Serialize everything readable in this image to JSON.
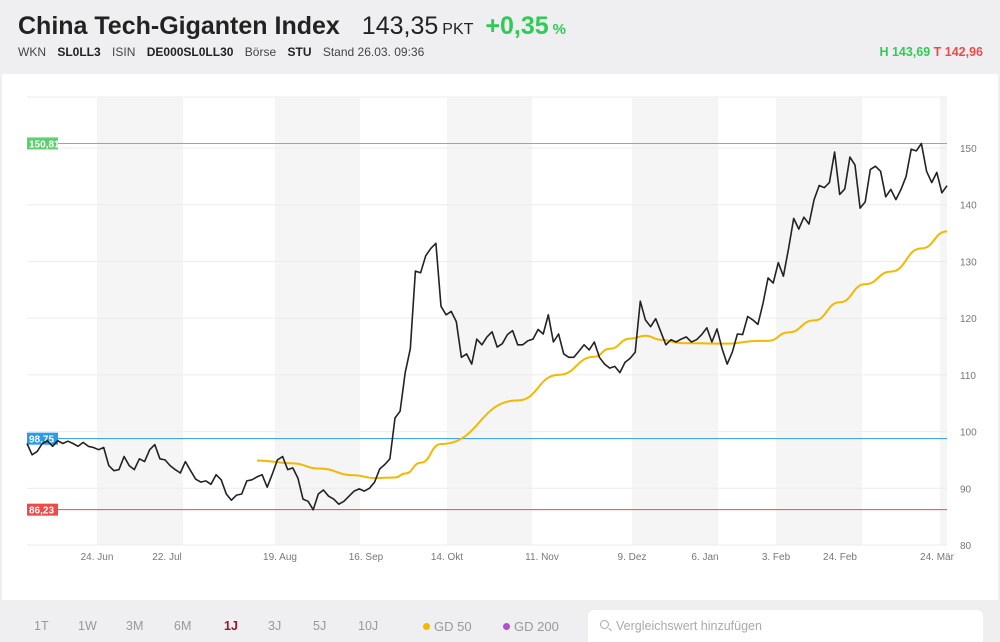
{
  "header": {
    "title": "China Tech-Giganten Index",
    "price": "143,35",
    "unit": "PKT",
    "change": "+0,35",
    "change_unit": "%",
    "wkn_label": "WKN",
    "wkn": "SL0LL3",
    "isin_label": "ISIN",
    "isin": "DE000SL0LL30",
    "exchange_label": "Börse",
    "exchange": "STU",
    "stand": "Stand 26.03. 09:36",
    "high": "H 143,69",
    "low": "T 142,96"
  },
  "colors": {
    "up": "#2ecc55",
    "down": "#ef4a4a",
    "price_line": "#222222",
    "gd50": "#f5b800",
    "gd200": "#b24fd1",
    "high_line": "#5ccf6e",
    "mid_line": "#2a9be8",
    "low_line": "#ef4a4a",
    "active_range": "#a0132c"
  },
  "bottom": {
    "ranges": [
      "1T",
      "1W",
      "3M",
      "6M",
      "1J",
      "3J",
      "5J",
      "10J"
    ],
    "active_range": "1J",
    "gd50": "GD 50",
    "gd200": "GD 200",
    "search_placeholder": "Vergleichswert hinzufügen"
  },
  "chart_data": {
    "type": "line",
    "y_ticks": [
      80,
      90,
      100,
      110,
      120,
      130,
      140,
      150
    ],
    "ylim": [
      80,
      159
    ],
    "x_ticks": [
      "24. Jun",
      "22. Jul",
      "19. Aug",
      "16. Sep",
      "14. Okt",
      "11. Nov",
      "9. Dez",
      "6. Jan",
      "3. Feb",
      "24. Feb",
      "24. Mär"
    ],
    "grid": true,
    "reference_lines": [
      {
        "label": "150,81",
        "value": 150.81,
        "color": "#5ccf6e"
      },
      {
        "label": "98,75",
        "value": 98.75,
        "color": "#2a9be8"
      },
      {
        "label": "86,23",
        "value": 86.23,
        "color": "#ef4a4a"
      }
    ],
    "price": [
      97.9,
      95.9,
      96.5,
      97.9,
      98.4,
      97.4,
      98.4,
      97.9,
      98.3,
      97.9,
      97.4,
      98.1,
      97.4,
      97.2,
      96.8,
      97.2,
      94.0,
      93.1,
      93.3,
      95.6,
      94.0,
      93.3,
      95.2,
      94.7,
      96.8,
      97.7,
      95.2,
      95.0,
      94.0,
      93.3,
      92.7,
      94.7,
      93.1,
      91.6,
      91.1,
      91.3,
      90.7,
      92.4,
      91.5,
      89.0,
      87.9,
      88.8,
      89.0,
      91.3,
      91.5,
      92.0,
      92.4,
      90.2,
      92.5,
      95.0,
      95.6,
      93.3,
      93.6,
      91.8,
      88.1,
      87.7,
      86.2,
      89.0,
      89.7,
      88.6,
      88.1,
      87.2,
      87.7,
      88.6,
      89.5,
      89.9,
      89.5,
      90.0,
      91.1,
      93.4,
      94.2,
      95.2,
      102.4,
      103.6,
      110.4,
      114.6,
      128.3,
      128.0,
      131.0,
      132.3,
      133.2,
      122.1,
      120.6,
      121.2,
      119.4,
      113.1,
      113.7,
      111.9,
      116.3,
      115.3,
      116.7,
      117.6,
      114.9,
      115.5,
      117.1,
      117.8,
      115.3,
      115.3,
      116.0,
      116.3,
      118.0,
      117.2,
      120.6,
      115.8,
      117.2,
      113.7,
      113.1,
      113.1,
      114.2,
      115.3,
      114.4,
      115.8,
      113.1,
      111.9,
      111.2,
      111.5,
      110.4,
      112.2,
      112.9,
      114.0,
      123.0,
      119.7,
      118.5,
      119.9,
      117.6,
      115.3,
      116.2,
      115.8,
      116.3,
      116.7,
      115.8,
      116.2,
      117.1,
      118.3,
      115.8,
      118.1,
      114.6,
      111.9,
      114.0,
      117.2,
      117.1,
      120.3,
      119.7,
      118.9,
      122.6,
      127.1,
      126.2,
      129.8,
      127.4,
      132.3,
      137.6,
      135.7,
      137.8,
      136.6,
      140.9,
      143.4,
      143.0,
      143.9,
      149.3,
      141.8,
      142.8,
      148.4,
      147.0,
      139.4,
      140.5,
      146.2,
      146.8,
      145.9,
      141.4,
      142.7,
      140.9,
      142.7,
      145.0,
      149.8,
      149.5,
      150.8,
      145.9,
      143.9,
      145.7,
      142.1,
      143.35
    ],
    "gd50": [
      [
        45,
        94.9
      ],
      [
        52,
        94.4
      ],
      [
        57,
        93.5
      ],
      [
        64,
        92.3
      ],
      [
        68,
        91.8
      ],
      [
        72,
        91.9
      ],
      [
        74,
        92.6
      ],
      [
        77,
        94.5
      ],
      [
        81,
        97.8
      ],
      [
        96,
        105.5
      ],
      [
        104,
        110.0
      ],
      [
        111,
        113.2
      ],
      [
        114,
        114.6
      ],
      [
        118,
        116.4
      ],
      [
        121,
        116.9
      ],
      [
        124,
        116.2
      ],
      [
        128,
        115.6
      ],
      [
        137,
        115.5
      ],
      [
        143,
        116.0
      ],
      [
        145,
        116.0
      ],
      [
        149,
        117.5
      ],
      [
        154,
        119.6
      ],
      [
        159,
        122.8
      ],
      [
        164,
        126.0
      ],
      [
        169,
        128.2
      ],
      [
        175,
        132.3
      ],
      [
        180,
        135.3
      ]
    ]
  }
}
